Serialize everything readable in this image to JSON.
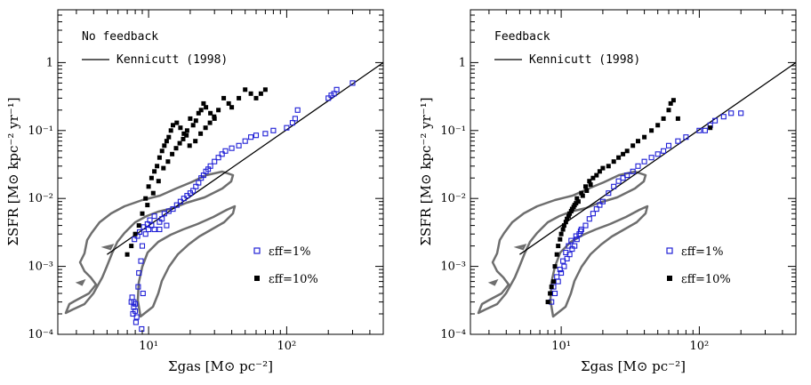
{
  "colors": {
    "eps1": "#1f1fd6",
    "eps10": "#000000",
    "kennicutt": "#000000",
    "contour": "#6e6e6e"
  },
  "chart_data": [
    {
      "type": "scatter",
      "title": "No feedback",
      "xlabel": "Σgas [M⊙ pc⁻²]",
      "ylabel": "ΣSFR [M⊙ kpc⁻² yr⁻¹]",
      "xscale": "log",
      "yscale": "log",
      "xlim": [
        2.2,
        500
      ],
      "ylim": [
        0.0001,
        6
      ],
      "xticklabels": [
        "10¹",
        "10²"
      ],
      "yticklabels": [
        "10⁻⁴",
        "10⁻³",
        "10⁻²",
        "10⁻¹",
        "1"
      ],
      "legend_line": "Kennicutt (1998)",
      "legend_eps1": "εff=1%",
      "legend_eps10": "εff=10%",
      "kennicutt": {
        "x": [
          5,
          500
        ],
        "y": [
          0.0015,
          1
        ]
      },
      "series": [
        {
          "name": "εff=1%",
          "marker": "open-square",
          "x": [
            7.5,
            7.8,
            8.0,
            8.2,
            7.6,
            8.4,
            8.5,
            8.8,
            9,
            9.5,
            10,
            10.5,
            11,
            12,
            12.5,
            13,
            14,
            15,
            16,
            17,
            18,
            19,
            20,
            21,
            22,
            23,
            24,
            25,
            26,
            27,
            28,
            30,
            32,
            34,
            36,
            40,
            45,
            50,
            55,
            60,
            70,
            80,
            100,
            110,
            115,
            120,
            200,
            210,
            220,
            230,
            300,
            7.9,
            8.3,
            8.6,
            9.2,
            9.8,
            10.2,
            11,
            12,
            13.5,
            7.7,
            8.1,
            8.9,
            9.1,
            7.8,
            8.0
          ],
          "y": [
            0.0003,
            0.00025,
            0.00022,
            0.00018,
            0.00035,
            0.0005,
            0.0008,
            0.0012,
            0.002,
            0.003,
            0.0035,
            0.004,
            0.0035,
            0.0045,
            0.005,
            0.006,
            0.0065,
            0.007,
            0.008,
            0.009,
            0.01,
            0.011,
            0.012,
            0.013,
            0.015,
            0.017,
            0.02,
            0.022,
            0.025,
            0.027,
            0.03,
            0.035,
            0.04,
            0.045,
            0.05,
            0.055,
            0.06,
            0.07,
            0.08,
            0.085,
            0.09,
            0.1,
            0.11,
            0.13,
            0.15,
            0.2,
            0.3,
            0.33,
            0.35,
            0.4,
            0.5,
            0.0025,
            0.0028,
            0.0032,
            0.0038,
            0.0042,
            0.0048,
            0.0055,
            0.0035,
            0.004,
            0.0002,
            0.00015,
            0.00012,
            0.0004,
            0.0003,
            0.00028
          ]
        },
        {
          "name": "εff=10%",
          "marker": "filled-square",
          "x": [
            7,
            7.5,
            8,
            8.5,
            9,
            9.5,
            10,
            10.5,
            11,
            11.5,
            12,
            12.5,
            13,
            13.5,
            14,
            14.5,
            15,
            16,
            17,
            18,
            19,
            20,
            21,
            22,
            23,
            24,
            25,
            26,
            28,
            30,
            32,
            35,
            38,
            40,
            45,
            50,
            55,
            60,
            65,
            70,
            9.8,
            10.8,
            11.8,
            12.8,
            13.8,
            14.8,
            15.8,
            16.8,
            17.8,
            18.8,
            19.8,
            21.8,
            23.8,
            25.8,
            27.8,
            29.8
          ],
          "y": [
            0.0015,
            0.002,
            0.003,
            0.004,
            0.006,
            0.01,
            0.015,
            0.02,
            0.025,
            0.03,
            0.04,
            0.05,
            0.06,
            0.07,
            0.08,
            0.1,
            0.12,
            0.13,
            0.11,
            0.09,
            0.1,
            0.15,
            0.12,
            0.14,
            0.18,
            0.2,
            0.25,
            0.22,
            0.18,
            0.15,
            0.2,
            0.3,
            0.25,
            0.22,
            0.3,
            0.4,
            0.35,
            0.3,
            0.35,
            0.4,
            0.008,
            0.012,
            0.018,
            0.028,
            0.035,
            0.045,
            0.055,
            0.065,
            0.075,
            0.085,
            0.06,
            0.07,
            0.09,
            0.11,
            0.13,
            0.16
          ]
        }
      ]
    },
    {
      "type": "scatter",
      "title": "Feedback",
      "xlabel": "Σgas [M⊙ pc⁻²]",
      "ylabel": "ΣSFR [M⊙ kpc⁻² yr⁻¹]",
      "xscale": "log",
      "yscale": "log",
      "xlim": [
        2.2,
        500
      ],
      "ylim": [
        0.0001,
        6
      ],
      "xticklabels": [
        "10¹",
        "10²"
      ],
      "yticklabels": [
        "10⁻⁴",
        "10⁻³",
        "10⁻²",
        "10⁻¹",
        "1"
      ],
      "legend_line": "Kennicutt (1998)",
      "legend_eps1": "εff=1%",
      "legend_eps10": "εff=10%",
      "kennicutt": {
        "x": [
          5,
          500
        ],
        "y": [
          0.0015,
          1
        ]
      },
      "series": [
        {
          "name": "εff=1%",
          "marker": "open-square",
          "x": [
            8.5,
            9,
            9.5,
            10,
            10.5,
            11,
            11.5,
            12,
            12.5,
            13,
            13.5,
            14,
            15,
            16,
            17,
            18,
            19,
            20,
            22,
            24,
            26,
            28,
            30,
            33,
            36,
            40,
            45,
            50,
            55,
            60,
            70,
            80,
            100,
            110,
            120,
            130,
            150,
            170,
            200,
            8.8,
            9.3,
            9.8,
            10.3,
            10.8,
            11.3,
            11.8,
            12.8,
            13.8
          ],
          "y": [
            0.0003,
            0.0004,
            0.0006,
            0.0008,
            0.001,
            0.0013,
            0.0015,
            0.0018,
            0.002,
            0.0025,
            0.003,
            0.0035,
            0.004,
            0.005,
            0.006,
            0.007,
            0.008,
            0.009,
            0.012,
            0.015,
            0.018,
            0.02,
            0.022,
            0.025,
            0.03,
            0.035,
            0.04,
            0.045,
            0.05,
            0.06,
            0.07,
            0.08,
            0.1,
            0.1,
            0.12,
            0.14,
            0.16,
            0.18,
            0.18,
            0.0005,
            0.0007,
            0.0009,
            0.0012,
            0.0016,
            0.002,
            0.0024,
            0.0028,
            0.0033
          ]
        },
        {
          "name": "εff=10%",
          "marker": "filled-square",
          "x": [
            8,
            8.5,
            9,
            9.5,
            10,
            10.5,
            11,
            11.5,
            12,
            12.5,
            13,
            14,
            15,
            16,
            17,
            18,
            19,
            20,
            22,
            24,
            26,
            28,
            30,
            33,
            36,
            40,
            45,
            50,
            55,
            60,
            62,
            65,
            70,
            8.3,
            8.8,
            9.3,
            9.8,
            10.3,
            10.8,
            11.3,
            11.8,
            12.3,
            12.8,
            13.3,
            14.3,
            15.3,
            16.3,
            120
          ],
          "y": [
            0.0003,
            0.0005,
            0.001,
            0.002,
            0.003,
            0.004,
            0.005,
            0.006,
            0.007,
            0.008,
            0.01,
            0.012,
            0.015,
            0.018,
            0.02,
            0.022,
            0.025,
            0.028,
            0.03,
            0.035,
            0.04,
            0.045,
            0.05,
            0.06,
            0.07,
            0.08,
            0.1,
            0.12,
            0.15,
            0.2,
            0.25,
            0.28,
            0.15,
            0.0004,
            0.0006,
            0.0015,
            0.0025,
            0.0035,
            0.0045,
            0.0055,
            0.0065,
            0.0075,
            0.0085,
            0.009,
            0.011,
            0.013,
            0.016,
            0.11
          ]
        }
      ]
    }
  ]
}
